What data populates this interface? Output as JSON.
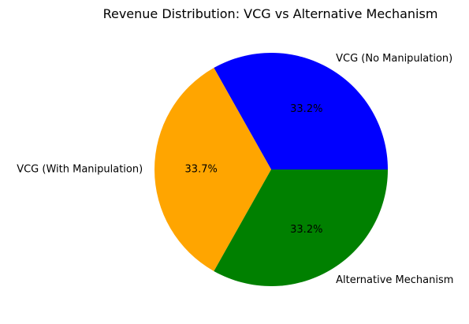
{
  "chart_data": {
    "type": "pie",
    "title": "Revenue Distribution: VCG vs Alternative Mechanism",
    "slices": [
      {
        "label": "VCG (No Manipulation)",
        "value": 33.2,
        "pct_label": "33.2%",
        "color": "#0000ff"
      },
      {
        "label": "VCG (With Manipulation)",
        "value": 33.7,
        "pct_label": "33.7%",
        "color": "#ffa500"
      },
      {
        "label": "Alternative Mechanism",
        "value": 33.2,
        "pct_label": "33.2%",
        "color": "#008000"
      }
    ],
    "start_angle_deg": 0,
    "direction": "counterclockwise"
  }
}
